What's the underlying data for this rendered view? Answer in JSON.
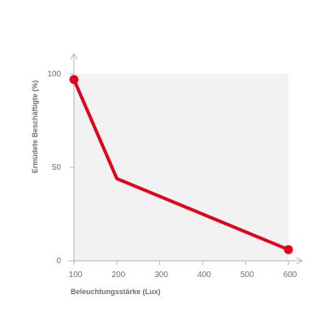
{
  "chart_data": {
    "type": "line",
    "title": "",
    "xlabel": "Beleuchtungsstärke (Lux)",
    "ylabel": "Ermüdete Beschäftigte (%)",
    "xlim": [
      100,
      600
    ],
    "ylim": [
      0,
      100
    ],
    "x_ticks": [
      "100",
      "200",
      "300",
      "400",
      "500",
      "600"
    ],
    "y_ticks": [
      "0",
      "50",
      "100"
    ],
    "grid": false,
    "plot_background": "#f2f2f2",
    "series": [
      {
        "color": "#e2001a",
        "points": [
          {
            "x": 100,
            "y": 97
          },
          {
            "x": 200,
            "y": 44
          },
          {
            "x": 600,
            "y": 6
          }
        ],
        "markers_on": [
          0,
          2
        ]
      }
    ]
  }
}
